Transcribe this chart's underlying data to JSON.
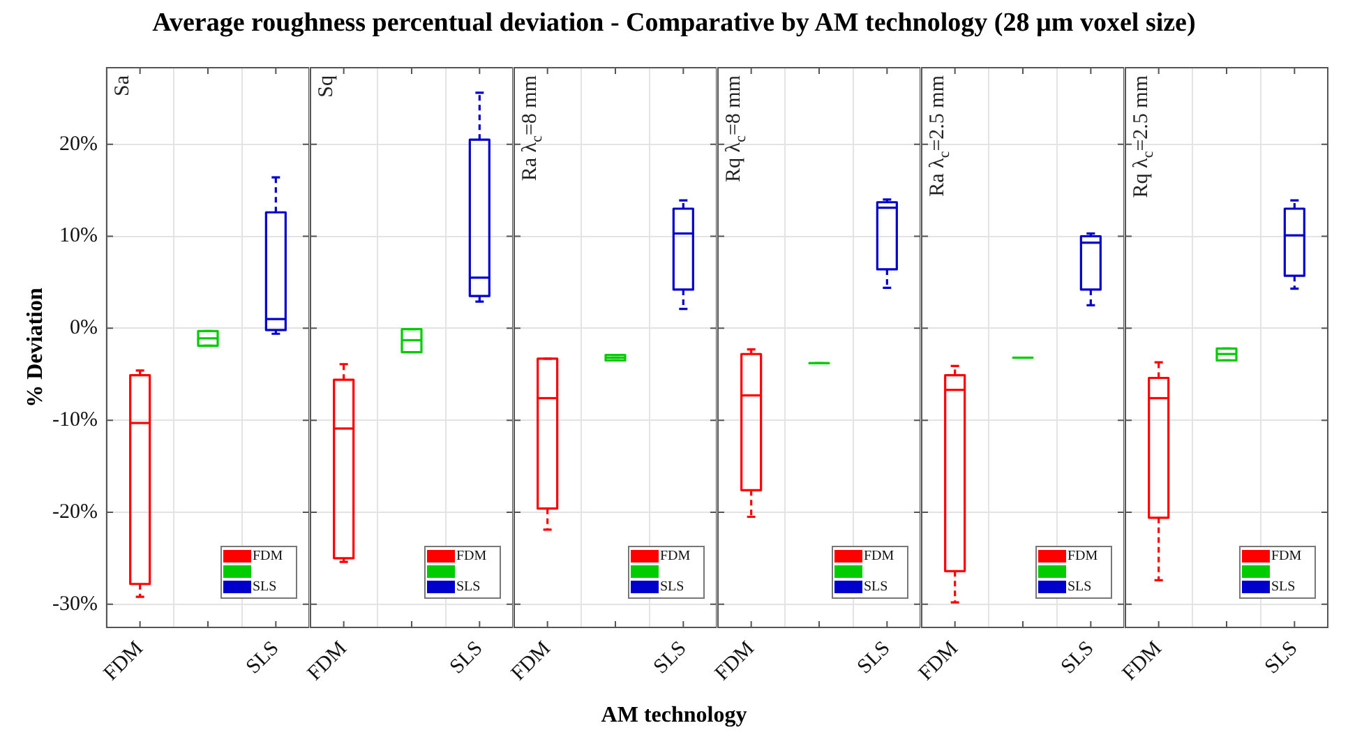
{
  "chart_data": [
    {
      "type": "box",
      "title": "Average roughness percentual deviation - Comparative by AM technology (28 µm voxel size)",
      "ylabel": "% Deviation",
      "annotations": [
        "Sa"
      ],
      "categories": [
        "FDM",
        null,
        "SLS"
      ],
      "legend": "bottom right",
      "grid": true,
      "ylim": [
        -32.6,
        28.4
      ],
      "yticks": [
        {
          "value": -30,
          "label": "-30%"
        },
        {
          "value": -20,
          "label": "-20%"
        },
        {
          "value": -10,
          "label": "-10%"
        },
        {
          "value": 0,
          "label": "0%"
        },
        {
          "value": 10,
          "label": "10%"
        },
        {
          "value": 20,
          "label": "20%"
        }
      ],
      "series": [
        {
          "name": "FDM",
          "color": "#ff0000",
          "boxes": [
            {
              "low": -29.2,
              "q1": -27.8,
              "median": -10.3,
              "q3": -5.1,
              "high": -4.6
            },
            null,
            null
          ]
        },
        {
          "color": "#00cc00",
          "boxes": [
            null,
            {
              "low": -1.9,
              "q1": -1.9,
              "median": -1.1,
              "q3": -0.3,
              "high": -0.3
            },
            null
          ]
        },
        {
          "name": "SLS",
          "color": "#0000cc",
          "boxes": [
            null,
            null,
            {
              "low": -0.6,
              "q1": -0.2,
              "median": 1.0,
              "q3": 12.6,
              "high": 16.4
            }
          ]
        }
      ]
    },
    {
      "type": "box",
      "annotations": [
        "Sq"
      ],
      "categories": [
        "FDM",
        null,
        "SLS"
      ],
      "legend": "bottom right",
      "grid": true,
      "tick_labels": "x",
      "ylim": [
        -32.6,
        28.4
      ],
      "yticks": [
        {
          "value": -30,
          "label": null
        },
        {
          "value": -20,
          "label": null
        },
        {
          "value": -10,
          "label": null
        },
        {
          "value": 0,
          "label": null
        },
        {
          "value": 10,
          "label": null
        },
        {
          "value": 20,
          "label": null
        }
      ],
      "series": [
        {
          "name": "FDM",
          "color": "#ff0000",
          "boxes": [
            {
              "low": -25.4,
              "q1": -25.0,
              "median": -10.9,
              "q3": -5.6,
              "high": -3.9
            },
            null,
            null
          ]
        },
        {
          "color": "#00cc00",
          "boxes": [
            null,
            {
              "low": -2.6,
              "q1": -2.6,
              "median": -1.3,
              "q3": -0.1,
              "high": -0.1
            },
            null
          ]
        },
        {
          "name": "SLS",
          "color": "#0000cc",
          "boxes": [
            null,
            null,
            {
              "low": 2.9,
              "q1": 3.5,
              "median": 5.5,
              "q3": 20.5,
              "high": 25.6
            }
          ]
        }
      ]
    },
    {
      "type": "box",
      "xlabel": "AM technology",
      "annotations": [
        "Ra λ$_{c}$=8 mm"
      ],
      "categories": [
        "FDM",
        null,
        "SLS"
      ],
      "legend": "bottom right",
      "grid": true,
      "tick_labels": "x",
      "ylim": [
        -32.6,
        28.4
      ],
      "yticks": [
        {
          "value": -30,
          "label": null
        },
        {
          "value": -20,
          "label": null
        },
        {
          "value": -10,
          "label": null
        },
        {
          "value": 0,
          "label": null
        },
        {
          "value": 10,
          "label": null
        },
        {
          "value": 20,
          "label": null
        }
      ],
      "series": [
        {
          "name": "FDM",
          "color": "#ff0000",
          "boxes": [
            {
              "low": -21.9,
              "q1": -19.6,
              "median": -7.6,
              "q3": -3.3,
              "high": -3.3
            },
            null,
            null
          ]
        },
        {
          "color": "#00cc00",
          "boxes": [
            null,
            {
              "low": -3.5,
              "q1": -3.5,
              "median": -3.2,
              "q3": -2.9,
              "high": -2.9
            },
            null
          ]
        },
        {
          "name": "SLS",
          "color": "#0000cc",
          "boxes": [
            null,
            null,
            {
              "low": 2.1,
              "q1": 4.2,
              "median": 10.3,
              "q3": 13.0,
              "high": 13.9
            }
          ]
        }
      ]
    },
    {
      "type": "box",
      "annotations": [
        "Rq λ$_{c}$=8 mm"
      ],
      "categories": [
        "FDM",
        null,
        "SLS"
      ],
      "legend": "bottom right",
      "grid": true,
      "tick_labels": "x",
      "ylim": [
        -32.6,
        28.4
      ],
      "yticks": [
        {
          "value": -30,
          "label": null
        },
        {
          "value": -20,
          "label": null
        },
        {
          "value": -10,
          "label": null
        },
        {
          "value": 0,
          "label": null
        },
        {
          "value": 10,
          "label": null
        },
        {
          "value": 20,
          "label": null
        }
      ],
      "series": [
        {
          "name": "FDM",
          "color": "#ff0000",
          "boxes": [
            {
              "low": -20.5,
              "q1": -17.6,
              "median": -7.3,
              "q3": -2.8,
              "high": -2.3
            },
            null,
            null
          ]
        },
        {
          "color": "#00cc00",
          "boxes": [
            null,
            {
              "low": -3.8,
              "q1": -3.8,
              "median": -3.8,
              "q3": -3.8,
              "high": -3.8
            },
            null
          ]
        },
        {
          "name": "SLS",
          "color": "#0000cc",
          "boxes": [
            null,
            null,
            {
              "low": 4.4,
              "q1": 6.4,
              "median": 13.1,
              "q3": 13.7,
              "high": 14.0
            }
          ]
        }
      ]
    },
    {
      "type": "box",
      "annotations": [
        "Ra λ$_{c}$=2.5 mm"
      ],
      "categories": [
        "FDM",
        null,
        "SLS"
      ],
      "legend": "bottom right",
      "grid": true,
      "tick_labels": "x",
      "ylim": [
        -32.6,
        28.4
      ],
      "yticks": [
        {
          "value": -30,
          "label": null
        },
        {
          "value": -20,
          "label": null
        },
        {
          "value": -10,
          "label": null
        },
        {
          "value": 0,
          "label": null
        },
        {
          "value": 10,
          "label": null
        },
        {
          "value": 20,
          "label": null
        }
      ],
      "series": [
        {
          "name": "FDM",
          "color": "#ff0000",
          "boxes": [
            {
              "low": -29.8,
              "q1": -26.4,
              "median": -6.7,
              "q3": -5.1,
              "high": -4.1
            },
            null,
            null
          ]
        },
        {
          "color": "#00cc00",
          "boxes": [
            null,
            {
              "low": -3.2,
              "q1": -3.2,
              "median": -3.2,
              "q3": -3.2,
              "high": -3.2
            },
            null
          ]
        },
        {
          "name": "SLS",
          "color": "#0000cc",
          "boxes": [
            null,
            null,
            {
              "low": 2.5,
              "q1": 4.2,
              "median": 9.3,
              "q3": 10.0,
              "high": 10.3
            }
          ]
        }
      ]
    },
    {
      "type": "box",
      "annotations": [
        "Rq λ$_{c}$=2.5 mm"
      ],
      "categories": [
        "FDM",
        null,
        "SLS"
      ],
      "legend": "bottom right",
      "grid": true,
      "tick_labels": "x",
      "ylim": [
        -32.6,
        28.4
      ],
      "yticks": [
        {
          "value": -30,
          "label": null
        },
        {
          "value": -20,
          "label": null
        },
        {
          "value": -10,
          "label": null
        },
        {
          "value": 0,
          "label": null
        },
        {
          "value": 10,
          "label": null
        },
        {
          "value": 20,
          "label": null
        }
      ],
      "series": [
        {
          "name": "FDM",
          "color": "#ff0000",
          "boxes": [
            {
              "low": -27.4,
              "q1": -20.6,
              "median": -7.6,
              "q3": -5.4,
              "high": -3.7
            },
            null,
            null
          ]
        },
        {
          "color": "#00cc00",
          "boxes": [
            null,
            {
              "low": -3.5,
              "q1": -3.5,
              "median": -2.8,
              "q3": -2.2,
              "high": -2.2
            },
            null
          ]
        },
        {
          "name": "SLS",
          "color": "#0000cc",
          "boxes": [
            null,
            null,
            {
              "low": 4.3,
              "q1": 5.7,
              "median": 10.1,
              "q3": 13.0,
              "high": 13.9
            }
          ]
        }
      ]
    }
  ]
}
